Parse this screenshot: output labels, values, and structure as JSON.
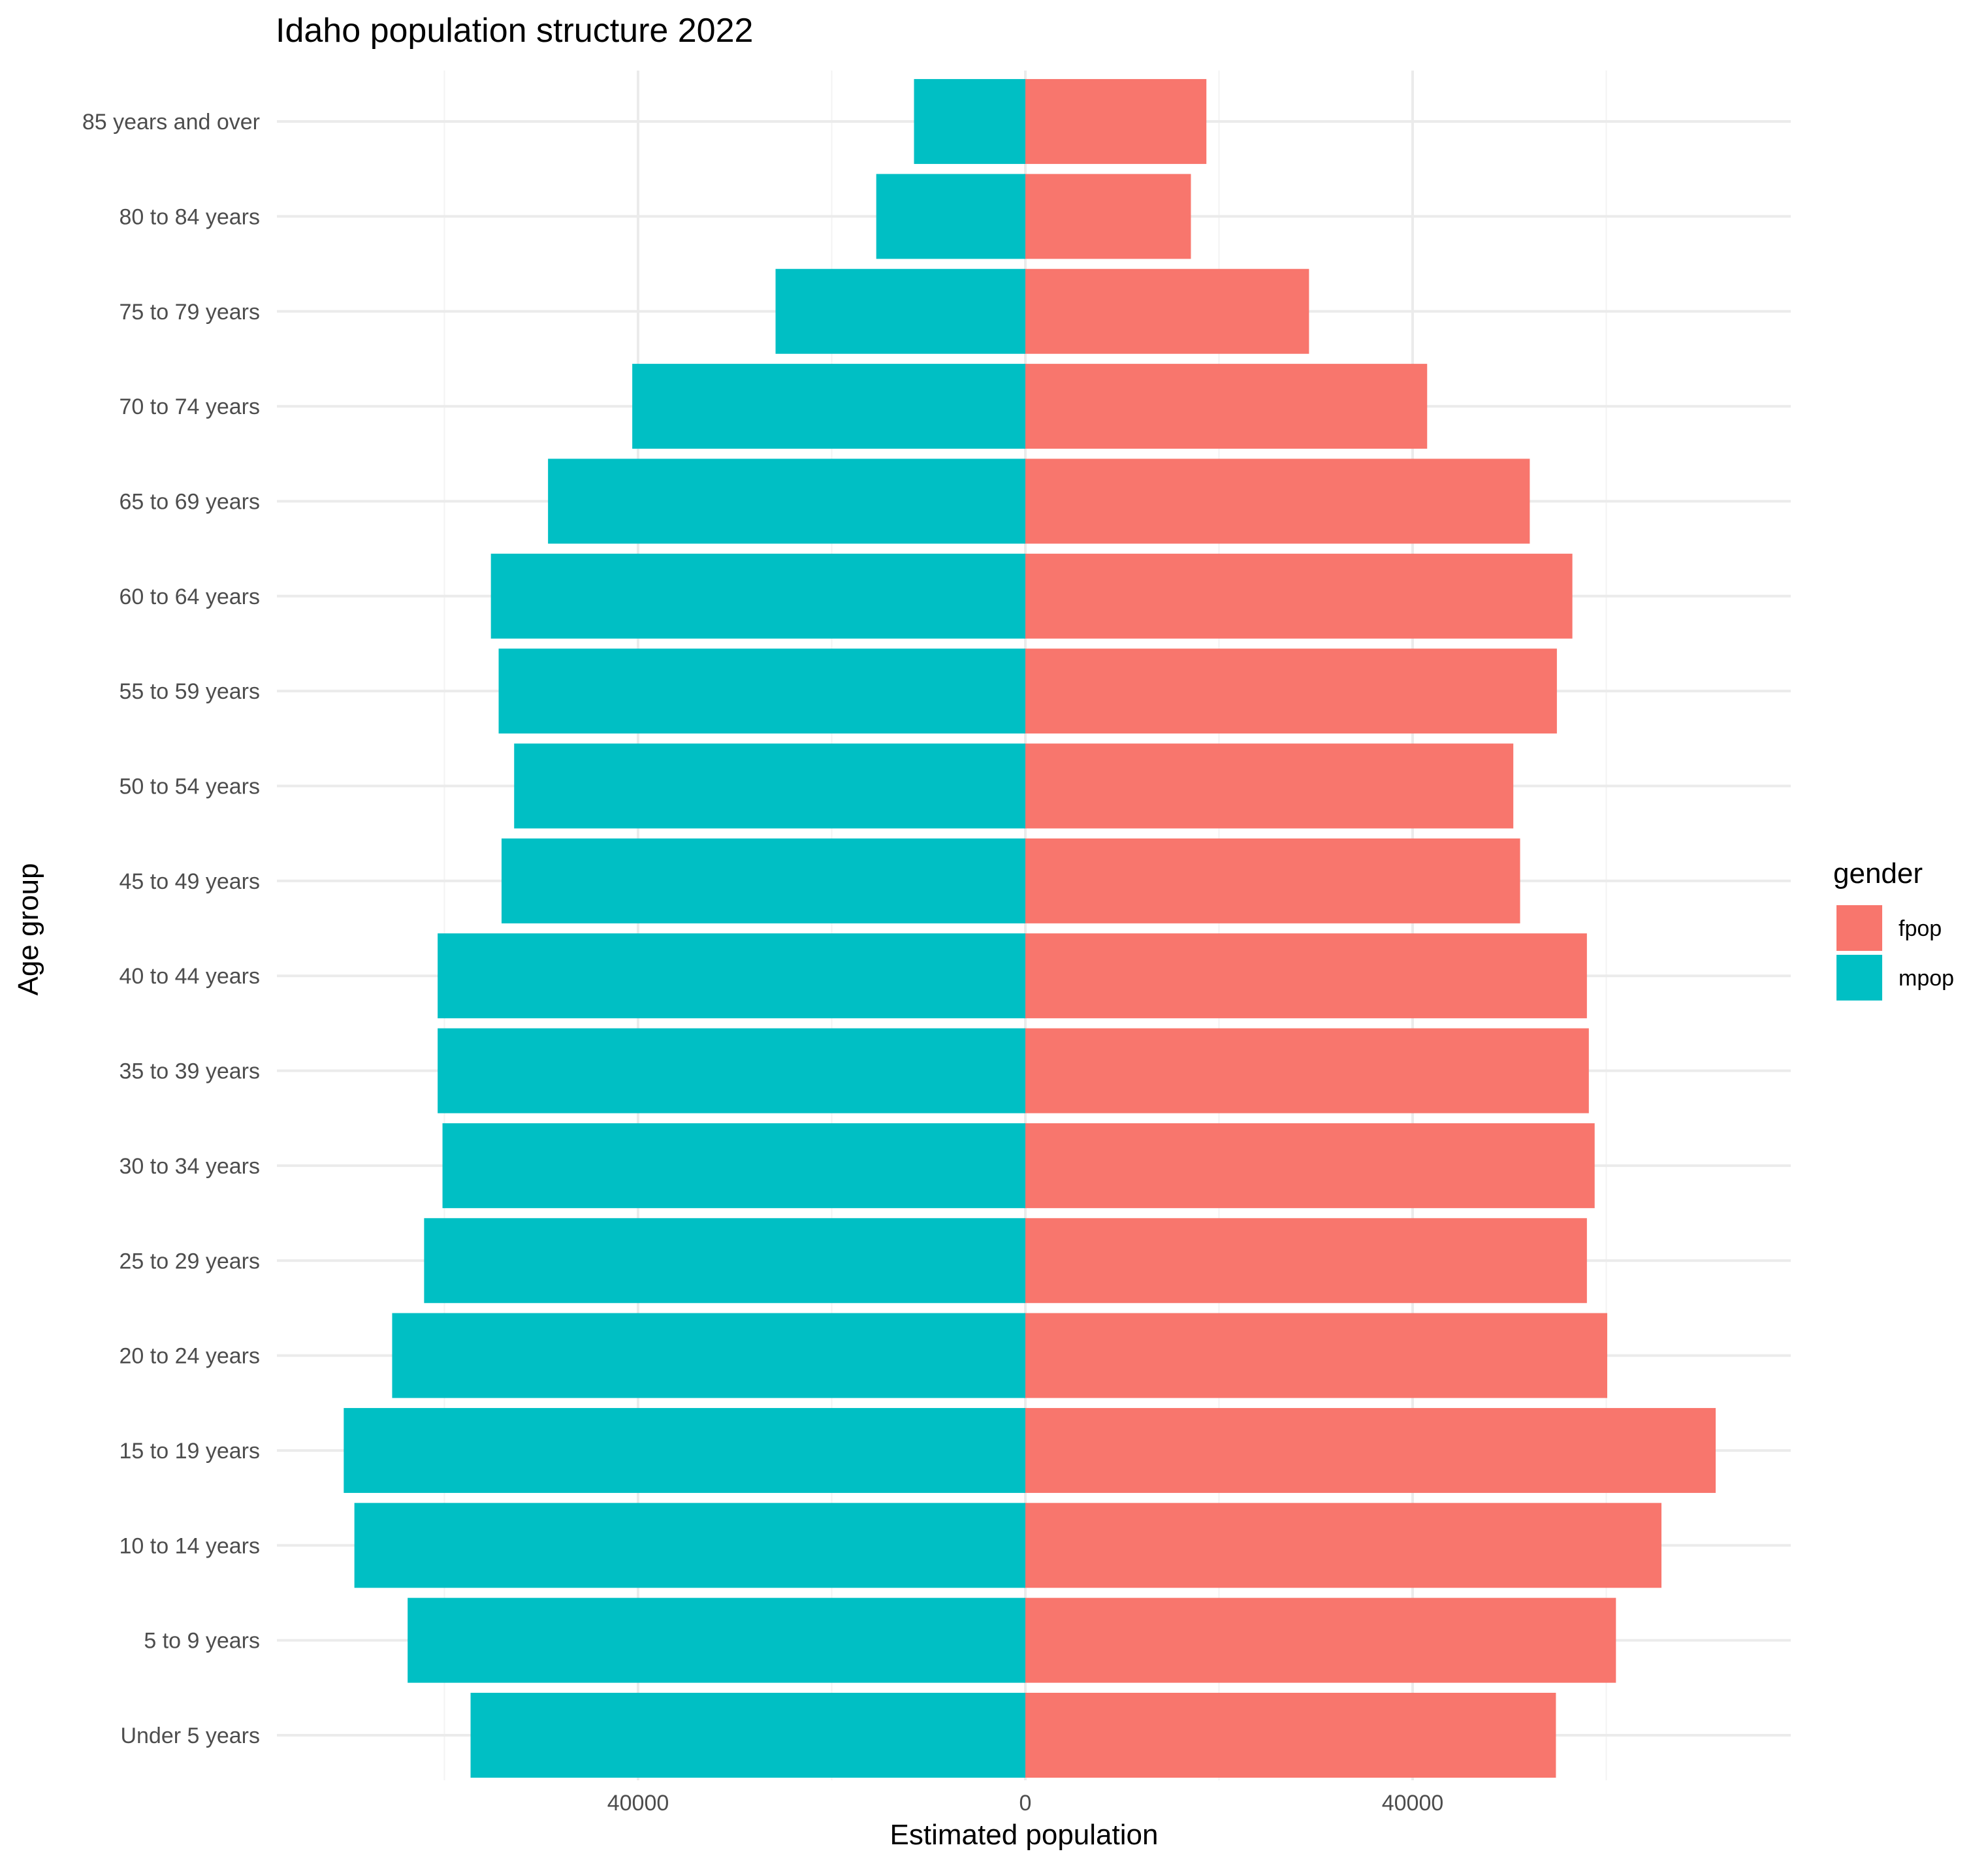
{
  "chart_data": {
    "type": "bar",
    "orientation": "horizontal",
    "title": "Idaho population structure 2022",
    "xlabel": "Estimated population",
    "ylabel": "Age group",
    "xlim": [
      -78000,
      78000
    ],
    "x_ticks": [
      -40000,
      0,
      40000
    ],
    "x_tick_labels": [
      "40000",
      "0",
      "40000"
    ],
    "x_minor_ticks": [
      -60000,
      -20000,
      20000,
      60000
    ],
    "grid": true,
    "categories": [
      "Under 5 years",
      "5 to 9 years",
      "10 to 14 years",
      "15 to 19 years",
      "20 to 24 years",
      "25 to 29 years",
      "30 to 34 years",
      "35 to 39 years",
      "40 to 44 years",
      "45 to 49 years",
      "50 to 54 years",
      "55 to 59 years",
      "60 to 64 years",
      "65 to 69 years",
      "70 to 74 years",
      "75 to 79 years",
      "80 to 84 years",
      "85 years and over"
    ],
    "series": [
      {
        "name": "fpop",
        "color": "#F8766D",
        "values": [
          54800,
          61000,
          65700,
          71300,
          60100,
          58000,
          58800,
          58200,
          58000,
          51100,
          50400,
          54900,
          56500,
          52100,
          41500,
          29300,
          17100,
          18700
        ]
      },
      {
        "name": "mpop",
        "color": "#00BFC4",
        "values": [
          -57300,
          -63800,
          -69300,
          -70400,
          -65400,
          -62100,
          -60200,
          -60700,
          -60700,
          -54100,
          -52800,
          -54400,
          -55200,
          -49300,
          -40600,
          -25800,
          -15400,
          -11500
        ]
      }
    ],
    "legend": {
      "title": "gender",
      "position": "right",
      "entries": [
        "fpop",
        "mpop"
      ]
    }
  }
}
